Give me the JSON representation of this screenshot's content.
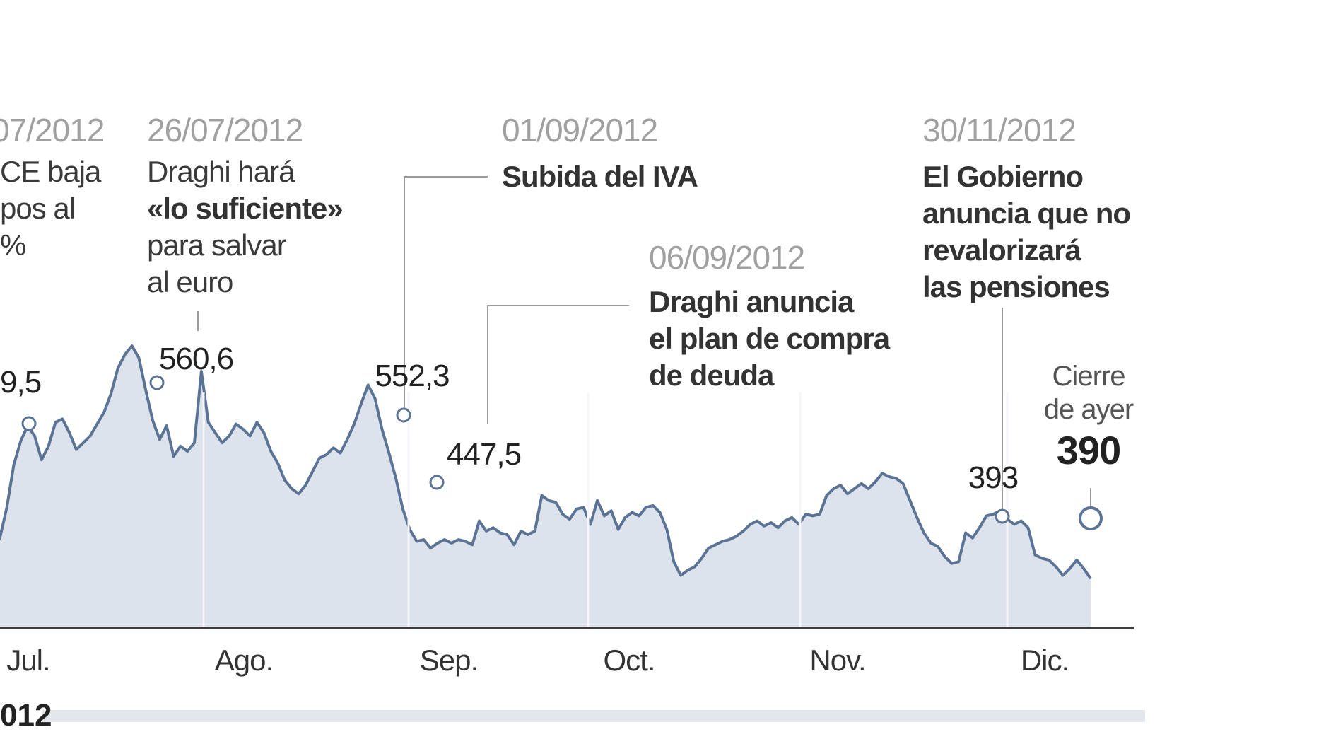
{
  "chart_data": {
    "type": "area",
    "title": "",
    "xlabel": "",
    "ylabel": "",
    "year_label": "012",
    "months": [
      "Jul.",
      "Ago.",
      "Sep.",
      "Oct.",
      "Nov.",
      "Dic."
    ],
    "ylim": [
      300,
      600
    ],
    "grid": false,
    "colors": {
      "area": "#dde3ec",
      "line": "#5b7394",
      "axis": "#3a3a3a",
      "connector": "#9a9a9a",
      "marker_fill": "#ffffff"
    },
    "series": [
      {
        "values": [
          455,
          462,
          480,
          505,
          519,
          528,
          522,
          508,
          516,
          530,
          532,
          524,
          514,
          518,
          522,
          529,
          536,
          547,
          562,
          570,
          575,
          568,
          549,
          531,
          520,
          528,
          510,
          516,
          513,
          518,
          560,
          530,
          524,
          518,
          522,
          529,
          526,
          522,
          530,
          524,
          513,
          506,
          496,
          491,
          488,
          493,
          501,
          509,
          511,
          515,
          512,
          520,
          529,
          541,
          552,
          544,
          526,
          512,
          497,
          479,
          467,
          460,
          461,
          456,
          459,
          461,
          459,
          461,
          460,
          458,
          472,
          466,
          468,
          465,
          464,
          458,
          466,
          464,
          466,
          487,
          484,
          483,
          476,
          473,
          479,
          480,
          470,
          484,
          475,
          478,
          467,
          474,
          477,
          475,
          480,
          481,
          477,
          467,
          448,
          440,
          443,
          445,
          450,
          456,
          458,
          460,
          461,
          463,
          466,
          470,
          472,
          469,
          471,
          468,
          472,
          474,
          470,
          476,
          475,
          476,
          487,
          491,
          493,
          488,
          491,
          494,
          491,
          495,
          500,
          498,
          497,
          494,
          484,
          474,
          465,
          459,
          457,
          451,
          447,
          448,
          465,
          462,
          468,
          475,
          476,
          478,
          473,
          470,
          472,
          468,
          452,
          450,
          449,
          445,
          440,
          444,
          449,
          444,
          438
        ]
      }
    ],
    "annotations": [
      {
        "date": "07/2012",
        "lines": [
          "CE baja",
          "pos al",
          "%"
        ],
        "value": "9,5"
      },
      {
        "date": "26/07/2012",
        "lines": [
          "Draghi hará",
          "«lo suficiente»",
          "para salvar",
          "al euro"
        ],
        "value": "560,6"
      },
      {
        "date": "01/09/2012",
        "lines": [
          "Subida del IVA"
        ],
        "value": "552,3"
      },
      {
        "date": "06/09/2012",
        "lines": [
          "Draghi anuncia",
          "el plan de compra",
          "de deuda"
        ],
        "value": "447,5"
      },
      {
        "date": "30/11/2012",
        "lines": [
          "El Gobierno",
          "anuncia que no",
          "revalorizará",
          "las pensiones"
        ],
        "value": "393"
      }
    ],
    "last": {
      "lines": [
        "Cierre",
        "de ayer"
      ],
      "value": "390"
    }
  }
}
